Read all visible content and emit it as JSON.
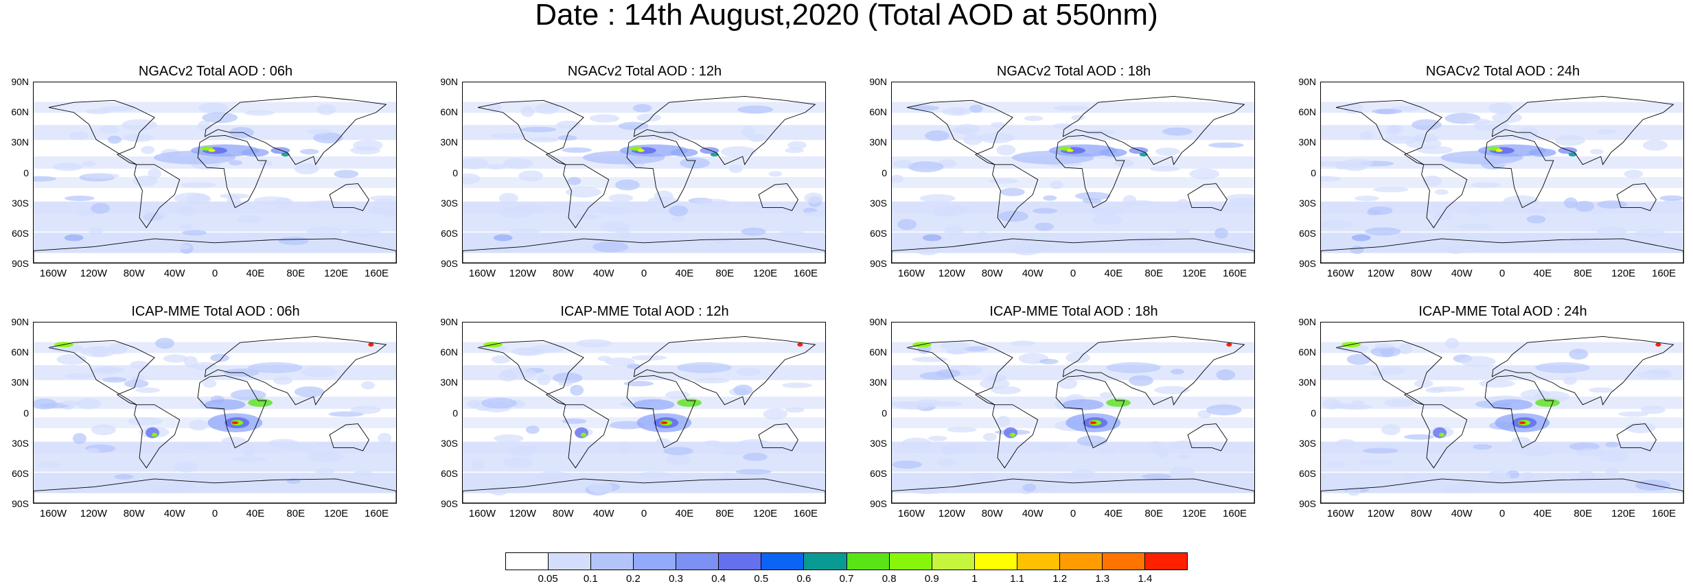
{
  "figure": {
    "title": "Date : 14th August,2020 (Total AOD at 550nm)"
  },
  "panels": [
    {
      "title": "NGACv2 Total AOD : 06h",
      "model": "ngac"
    },
    {
      "title": "NGACv2 Total AOD : 12h",
      "model": "ngac"
    },
    {
      "title": "NGACv2 Total AOD : 18h",
      "model": "ngac"
    },
    {
      "title": "NGACv2 Total AOD : 24h",
      "model": "ngac"
    },
    {
      "title": "ICAP-MME Total AOD : 06h",
      "model": "icap"
    },
    {
      "title": "ICAP-MME Total AOD : 12h",
      "model": "icap"
    },
    {
      "title": "ICAP-MME Total AOD : 18h",
      "model": "icap"
    },
    {
      "title": "ICAP-MME Total AOD : 24h",
      "model": "icap"
    }
  ],
  "axes": {
    "lat_labels": [
      "90N",
      "60N",
      "30N",
      "0",
      "30S",
      "60S",
      "90S"
    ],
    "lon_labels": [
      "160W",
      "120W",
      "80W",
      "40W",
      "0",
      "40E",
      "80E",
      "120E",
      "160E"
    ],
    "lon_values": [
      -160,
      -120,
      -80,
      -40,
      0,
      40,
      80,
      120,
      160
    ],
    "lat_range": [
      -90,
      90
    ],
    "lon_range": [
      -180,
      180
    ]
  },
  "colorbar": {
    "labels": [
      "0.05",
      "0.1",
      "0.2",
      "0.3",
      "0.4",
      "0.5",
      "0.6",
      "0.7",
      "0.8",
      "0.9",
      "1",
      "1.1",
      "1.2",
      "1.3",
      "1.4"
    ],
    "colors": [
      "#ffffff",
      "#d4defc",
      "#b4c4fb",
      "#93aafa",
      "#7d90f4",
      "#6470ee",
      "#0c64f4",
      "#0a9a94",
      "#5ae416",
      "#88f60a",
      "#c6f53e",
      "#ffff00",
      "#ffc000",
      "#ff9c00",
      "#ff7400",
      "#ff2000"
    ]
  }
}
